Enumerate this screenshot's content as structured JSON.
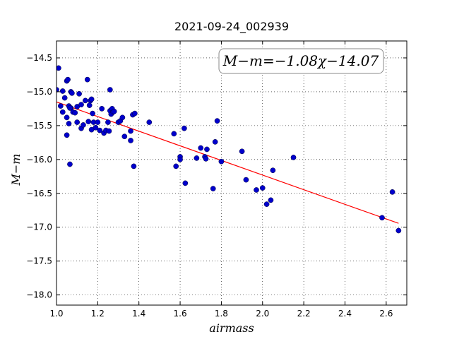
{
  "chart_data": {
    "type": "scatter",
    "title": "2021-09-24_002939",
    "xlabel": "airmass",
    "ylabel": "M−m",
    "xlim": [
      1.0,
      2.7
    ],
    "ylim": [
      -18.15,
      -14.25
    ],
    "x_ticks": [
      1.0,
      1.2,
      1.4,
      1.6,
      1.8,
      2.0,
      2.2,
      2.4,
      2.6
    ],
    "x_tick_labels": [
      "1.0",
      "1.2",
      "1.4",
      "1.6",
      "1.8",
      "2.0",
      "2.2",
      "2.4",
      "2.6"
    ],
    "y_ticks": [
      -14.5,
      -15.0,
      -15.5,
      -16.0,
      -16.5,
      -17.0,
      -17.5,
      -18.0
    ],
    "y_tick_labels": [
      "−14.5",
      "−15.0",
      "−15.5",
      "−16.0",
      "−16.5",
      "−17.0",
      "−17.5",
      "−18.0"
    ],
    "grid": true,
    "annotation": "M−m=−1.08χ−14.07",
    "fit": {
      "slope": -1.08,
      "intercept": -14.07,
      "x_range": [
        1.0,
        2.66
      ],
      "color": "#ff0000"
    },
    "series": [
      {
        "marker_color": "#0000cc",
        "points": [
          [
            1.0,
            -14.97
          ],
          [
            1.01,
            -14.65
          ],
          [
            1.02,
            -15.21
          ],
          [
            1.03,
            -14.99
          ],
          [
            1.03,
            -15.3
          ],
          [
            1.04,
            -15.09
          ],
          [
            1.05,
            -15.38
          ],
          [
            1.05,
            -14.84
          ],
          [
            1.055,
            -14.82
          ],
          [
            1.06,
            -15.21
          ],
          [
            1.06,
            -15.47
          ],
          [
            1.07,
            -15.24
          ],
          [
            1.065,
            -15.24
          ],
          [
            1.05,
            -15.64
          ],
          [
            1.07,
            -15.0
          ],
          [
            1.075,
            -15.02
          ],
          [
            1.08,
            -15.3
          ],
          [
            1.09,
            -15.31
          ],
          [
            1.1,
            -15.22
          ],
          [
            1.1,
            -15.45
          ],
          [
            1.11,
            -15.03
          ],
          [
            1.12,
            -15.19
          ],
          [
            1.12,
            -15.54
          ],
          [
            1.13,
            -15.49
          ],
          [
            1.14,
            -15.13
          ],
          [
            1.15,
            -14.82
          ],
          [
            1.155,
            -15.44
          ],
          [
            1.16,
            -15.2
          ],
          [
            1.165,
            -15.13
          ],
          [
            1.17,
            -15.11
          ],
          [
            1.17,
            -15.56
          ],
          [
            1.175,
            -15.32
          ],
          [
            1.18,
            -15.45
          ],
          [
            1.19,
            -15.53
          ],
          [
            1.2,
            -15.45
          ],
          [
            1.21,
            -15.57
          ],
          [
            1.22,
            -15.25
          ],
          [
            1.23,
            -15.61
          ],
          [
            1.24,
            -15.57
          ],
          [
            1.25,
            -15.45
          ],
          [
            1.255,
            -15.58
          ],
          [
            1.26,
            -15.28
          ],
          [
            1.26,
            -14.97
          ],
          [
            1.265,
            -15.33
          ],
          [
            1.27,
            -15.25
          ],
          [
            1.275,
            -15.3
          ],
          [
            1.28,
            -15.29
          ],
          [
            1.3,
            -15.45
          ],
          [
            1.31,
            -15.43
          ],
          [
            1.32,
            -15.38
          ],
          [
            1.33,
            -15.66
          ],
          [
            1.36,
            -15.58
          ],
          [
            1.36,
            -15.72
          ],
          [
            1.37,
            -15.34
          ],
          [
            1.38,
            -15.32
          ],
          [
            1.375,
            -16.1
          ],
          [
            1.45,
            -15.45
          ],
          [
            1.065,
            -16.07
          ],
          [
            1.57,
            -15.62
          ],
          [
            1.58,
            -16.1
          ],
          [
            1.6,
            -15.96
          ],
          [
            1.6,
            -16.0
          ],
          [
            1.62,
            -15.54
          ],
          [
            1.625,
            -16.35
          ],
          [
            1.68,
            -15.98
          ],
          [
            1.7,
            -15.83
          ],
          [
            1.72,
            -15.96
          ],
          [
            1.725,
            -15.99
          ],
          [
            1.73,
            -15.85
          ],
          [
            1.76,
            -16.43
          ],
          [
            1.77,
            -15.74
          ],
          [
            1.78,
            -15.43
          ],
          [
            1.8,
            -16.03
          ],
          [
            1.9,
            -15.88
          ],
          [
            1.92,
            -16.3
          ],
          [
            1.97,
            -16.45
          ],
          [
            2.0,
            -16.42
          ],
          [
            2.02,
            -16.66
          ],
          [
            2.04,
            -16.6
          ],
          [
            2.05,
            -16.16
          ],
          [
            2.15,
            -15.97
          ],
          [
            2.58,
            -16.86
          ],
          [
            2.63,
            -16.48
          ],
          [
            2.66,
            -17.05
          ]
        ]
      }
    ]
  }
}
